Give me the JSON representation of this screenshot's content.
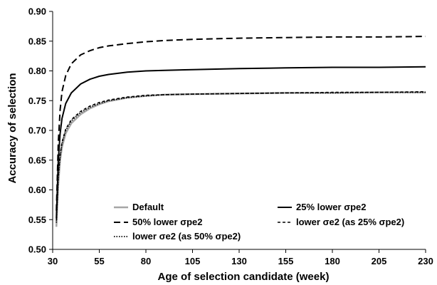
{
  "chart_data": {
    "type": "line",
    "xlabel": "Age of selection candidate (week)",
    "ylabel": "Accuracy of selection",
    "xlim": [
      30,
      230
    ],
    "ylim": [
      0.5,
      0.9
    ],
    "xticks": [
      30,
      55,
      80,
      105,
      130,
      155,
      180,
      205,
      230
    ],
    "xtick_labels": [
      "30",
      "55",
      "80",
      "105",
      "130",
      "155",
      "180",
      "205",
      "230"
    ],
    "yticks": [
      0.5,
      0.55,
      0.6,
      0.65,
      0.7,
      0.75,
      0.8,
      0.85,
      0.9
    ],
    "ytick_labels": [
      "0.50",
      "0.55",
      "0.60",
      "0.65",
      "0.70",
      "0.75",
      "0.80",
      "0.85",
      "0.90"
    ],
    "grid": false,
    "legend_position": "bottom-inside",
    "series": [
      {
        "name": "Default",
        "color": "#a6a6a6",
        "style": "solid",
        "x": [
          32,
          33,
          34,
          35,
          37,
          40,
          45,
          50,
          55,
          60,
          70,
          80,
          90,
          105,
          130,
          155,
          180,
          205,
          230
        ],
        "y": [
          0.538,
          0.61,
          0.65,
          0.672,
          0.695,
          0.712,
          0.727,
          0.737,
          0.744,
          0.749,
          0.755,
          0.758,
          0.76,
          0.761,
          0.762,
          0.763,
          0.763,
          0.764,
          0.764
        ]
      },
      {
        "name": "25% lower σpe2",
        "color": "#000000",
        "style": "solid",
        "x": [
          32,
          33,
          34,
          35,
          37,
          40,
          45,
          50,
          55,
          60,
          70,
          80,
          90,
          105,
          130,
          155,
          180,
          205,
          230
        ],
        "y": [
          0.552,
          0.65,
          0.695,
          0.72,
          0.745,
          0.763,
          0.778,
          0.786,
          0.791,
          0.794,
          0.798,
          0.8,
          0.801,
          0.802,
          0.804,
          0.805,
          0.806,
          0.806,
          0.807
        ]
      },
      {
        "name": "50% lower σpe2",
        "color": "#000000",
        "style": "longdash",
        "x": [
          32,
          33,
          34,
          35,
          37,
          40,
          45,
          50,
          55,
          60,
          70,
          80,
          90,
          105,
          130,
          155,
          180,
          205,
          230
        ],
        "y": [
          0.565,
          0.68,
          0.735,
          0.765,
          0.792,
          0.812,
          0.827,
          0.834,
          0.839,
          0.842,
          0.846,
          0.849,
          0.851,
          0.853,
          0.855,
          0.856,
          0.857,
          0.857,
          0.858
        ]
      },
      {
        "name": "lower σe2 (as 25% σpe2)",
        "color": "#000000",
        "style": "shortdash",
        "x": [
          32,
          33,
          34,
          35,
          37,
          40,
          45,
          50,
          55,
          60,
          70,
          80,
          90,
          105,
          130,
          155,
          180,
          205,
          230
        ],
        "y": [
          0.548,
          0.625,
          0.66,
          0.68,
          0.702,
          0.718,
          0.732,
          0.741,
          0.747,
          0.751,
          0.756,
          0.759,
          0.76,
          0.761,
          0.762,
          0.763,
          0.764,
          0.764,
          0.765
        ]
      },
      {
        "name": "lower σe2 (as 50% σpe2)",
        "color": "#000000",
        "style": "dotted",
        "x": [
          32,
          33,
          34,
          35,
          37,
          40,
          45,
          50,
          55,
          60,
          70,
          80,
          90,
          105,
          130,
          155,
          180,
          205,
          230
        ],
        "y": [
          0.545,
          0.62,
          0.657,
          0.678,
          0.7,
          0.716,
          0.73,
          0.739,
          0.745,
          0.75,
          0.755,
          0.758,
          0.76,
          0.761,
          0.762,
          0.763,
          0.763,
          0.764,
          0.764
        ]
      }
    ]
  }
}
